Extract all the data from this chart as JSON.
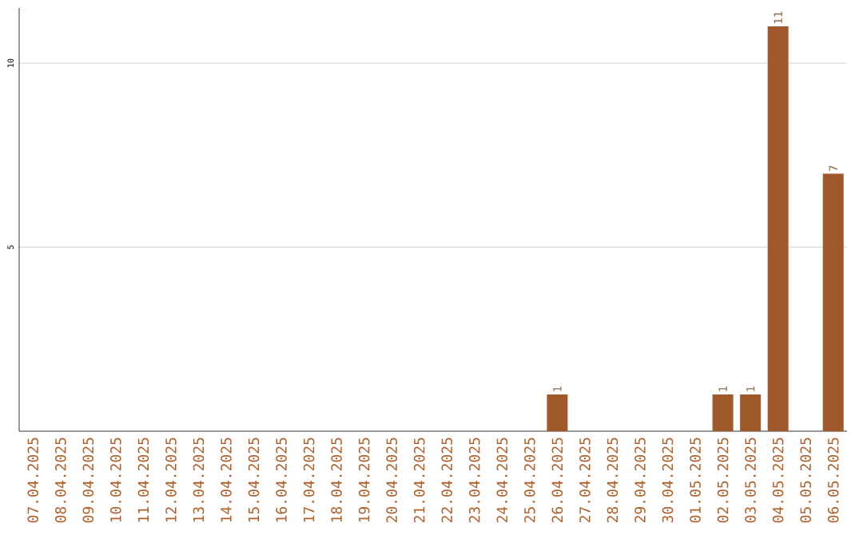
{
  "chart_data": {
    "type": "bar",
    "categories": [
      "07.04.2025",
      "08.04.2025",
      "09.04.2025",
      "10.04.2025",
      "11.04.2025",
      "12.04.2025",
      "13.04.2025",
      "14.04.2025",
      "15.04.2025",
      "16.04.2025",
      "17.04.2025",
      "18.04.2025",
      "19.04.2025",
      "20.04.2025",
      "21.04.2025",
      "22.04.2025",
      "23.04.2025",
      "24.04.2025",
      "25.04.2025",
      "26.04.2025",
      "27.04.2025",
      "28.04.2025",
      "29.04.2025",
      "30.04.2025",
      "01.05.2025",
      "02.05.2025",
      "03.05.2025",
      "04.05.2025",
      "05.05.2025",
      "06.05.2025"
    ],
    "values": [
      0,
      0,
      0,
      0,
      0,
      0,
      0,
      0,
      0,
      0,
      0,
      0,
      0,
      0,
      0,
      0,
      0,
      0,
      0,
      1,
      0,
      0,
      0,
      0,
      0,
      1,
      1,
      11,
      0,
      7
    ],
    "value_labels": [
      null,
      null,
      null,
      null,
      null,
      null,
      null,
      null,
      null,
      null,
      null,
      null,
      null,
      null,
      null,
      null,
      null,
      null,
      null,
      "1",
      null,
      null,
      null,
      null,
      null,
      "1",
      "1",
      "11",
      null,
      "7"
    ],
    "color": "#a0592a",
    "ylim": [
      0,
      11.5
    ],
    "yticks": [
      5,
      10
    ],
    "grid": "y"
  }
}
